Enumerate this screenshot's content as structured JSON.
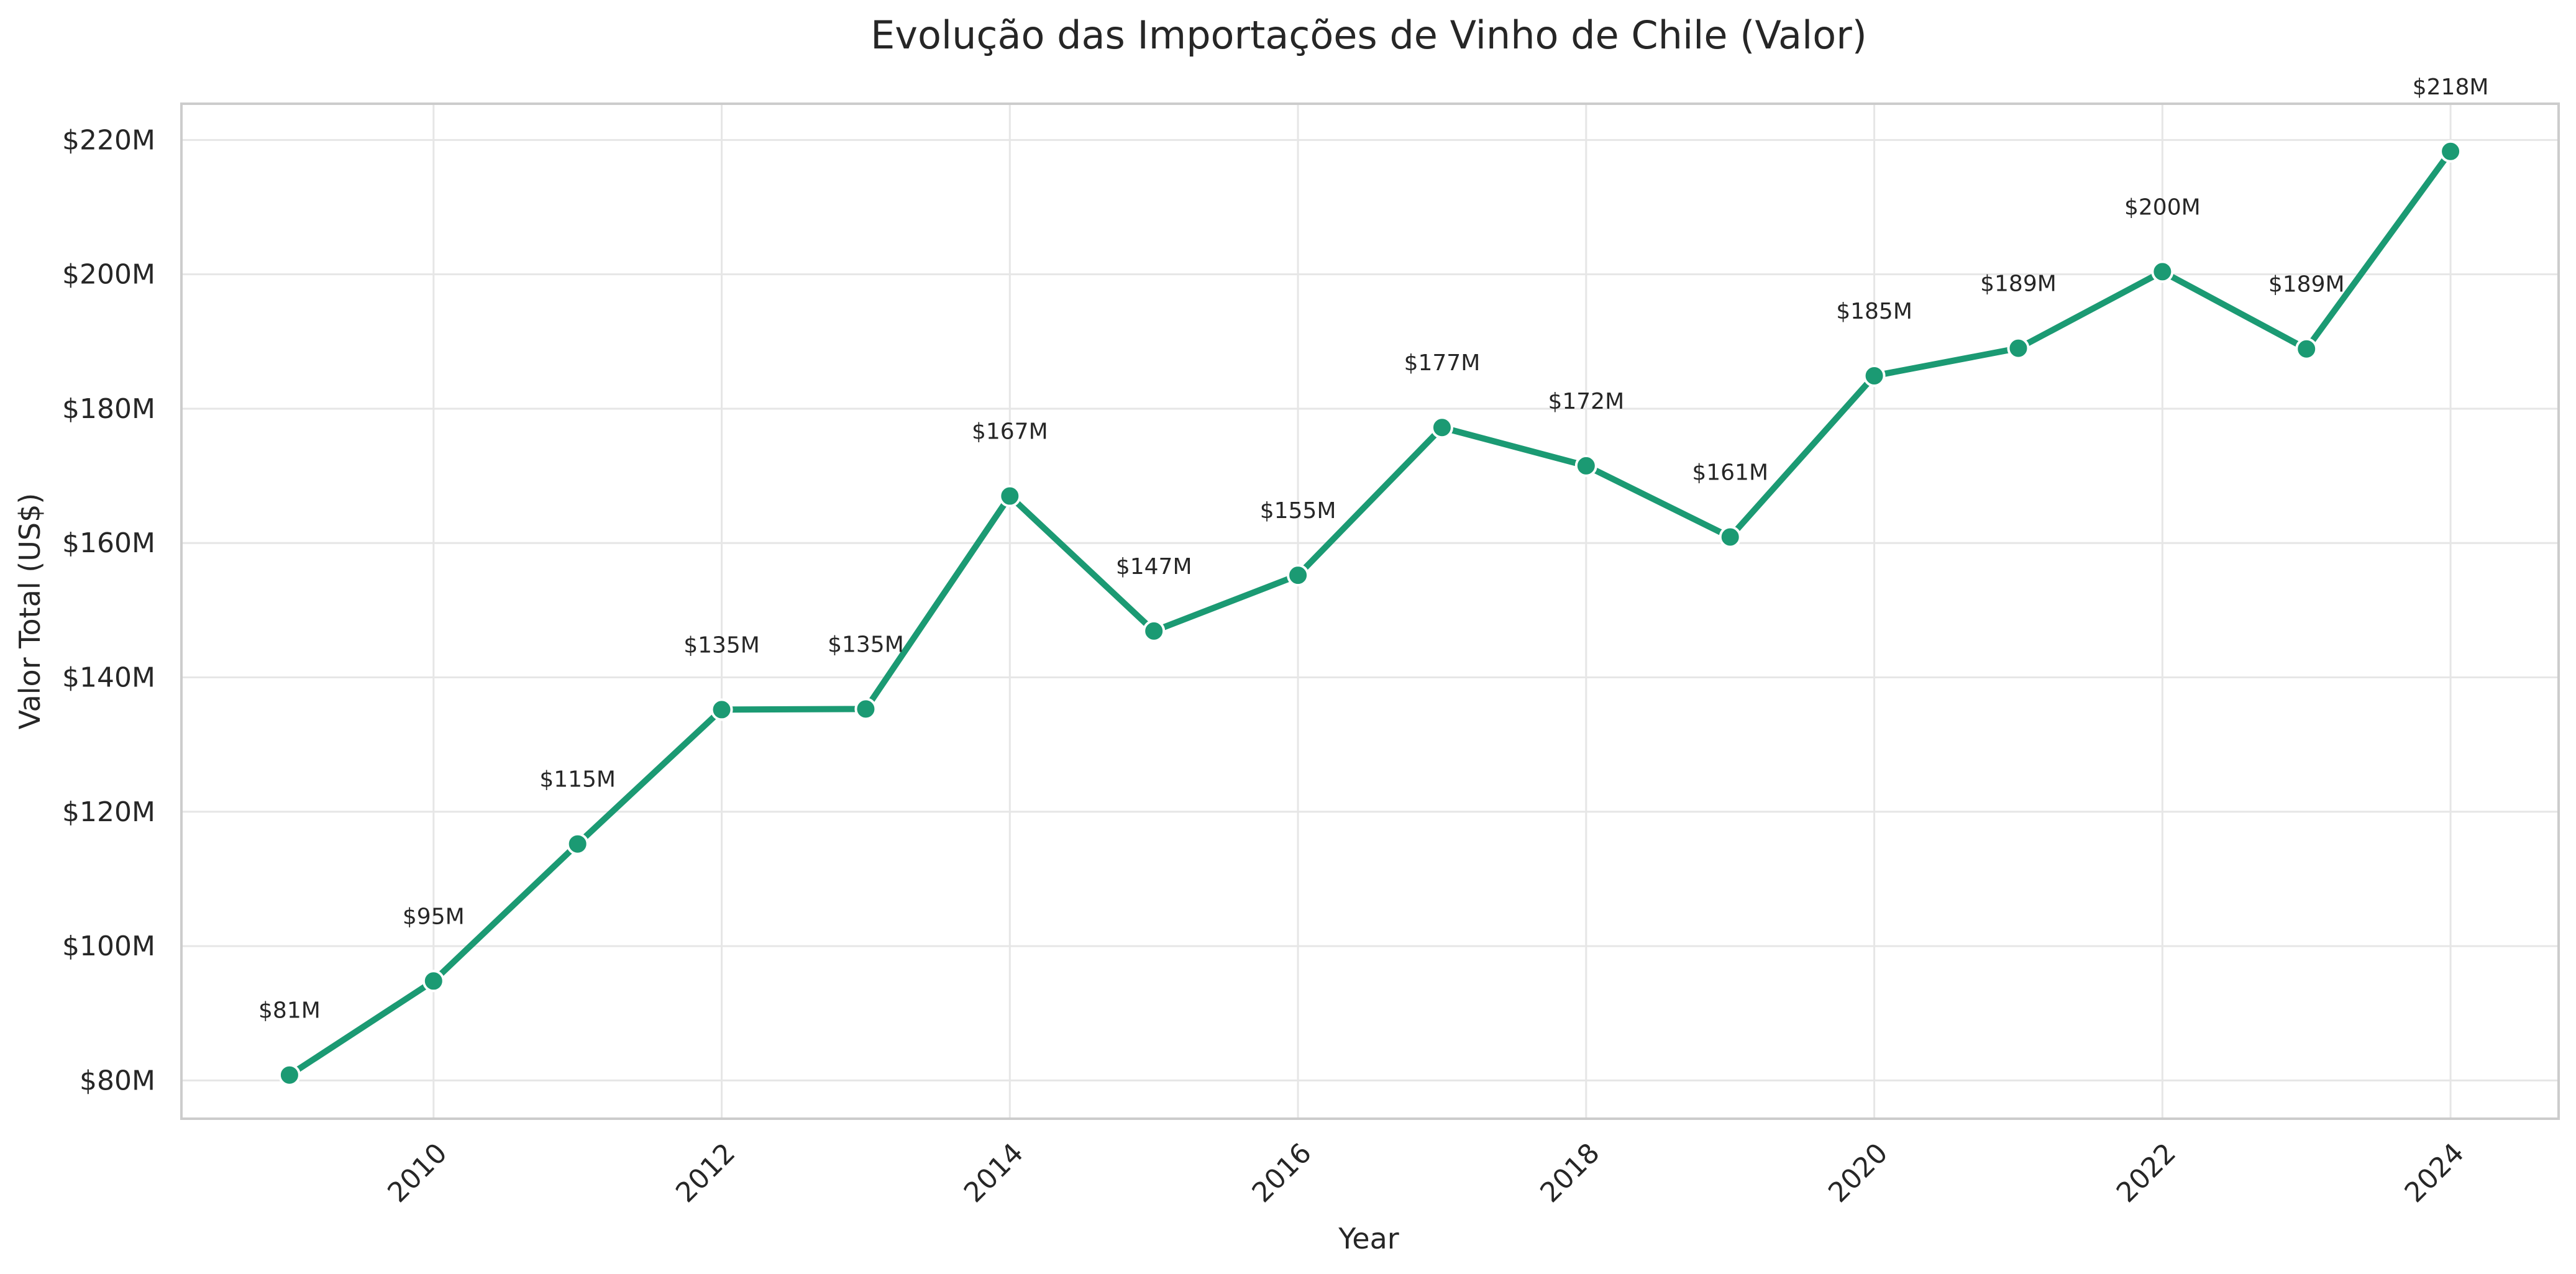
{
  "chart_data": {
    "type": "line",
    "title": "Evolução das Importações de Vinho de Chile (Valor)",
    "xlabel": "Year",
    "ylabel": "Valor Total (US$)",
    "x": [
      2009,
      2010,
      2011,
      2012,
      2013,
      2014,
      2015,
      2016,
      2017,
      2018,
      2019,
      2020,
      2021,
      2022,
      2023,
      2024
    ],
    "series": [
      {
        "values": [
          80.8,
          94.8,
          115.2,
          135.2,
          135.3,
          167.0,
          146.9,
          155.2,
          177.2,
          171.5,
          160.9,
          184.9,
          189.0,
          200.4,
          188.9,
          218.3
        ],
        "labels": [
          "$81M",
          "$95M",
          "$115M",
          "$135M",
          "$135M",
          "$167M",
          "$147M",
          "$155M",
          "$177M",
          "$172M",
          "$161M",
          "$185M",
          "$189M",
          "$200M",
          "$189M",
          "$218M"
        ],
        "color": "#1b9a73"
      }
    ],
    "xlim": [
      2008.25,
      2024.75
    ],
    "ylim": [
      74.3,
      225.4
    ],
    "x_ticks": [
      2010,
      2012,
      2014,
      2016,
      2018,
      2020,
      2022,
      2024
    ],
    "x_tick_labels": [
      "2010",
      "2012",
      "2014",
      "2016",
      "2018",
      "2020",
      "2022",
      "2024"
    ],
    "x_tick_rotation": 45,
    "y_ticks": [
      80,
      100,
      120,
      140,
      160,
      180,
      200,
      220
    ],
    "y_tick_labels": [
      "$80M",
      "$100M",
      "$120M",
      "$140M",
      "$160M",
      "$180M",
      "$200M",
      "$220M"
    ],
    "grid": true,
    "legend": "none"
  }
}
